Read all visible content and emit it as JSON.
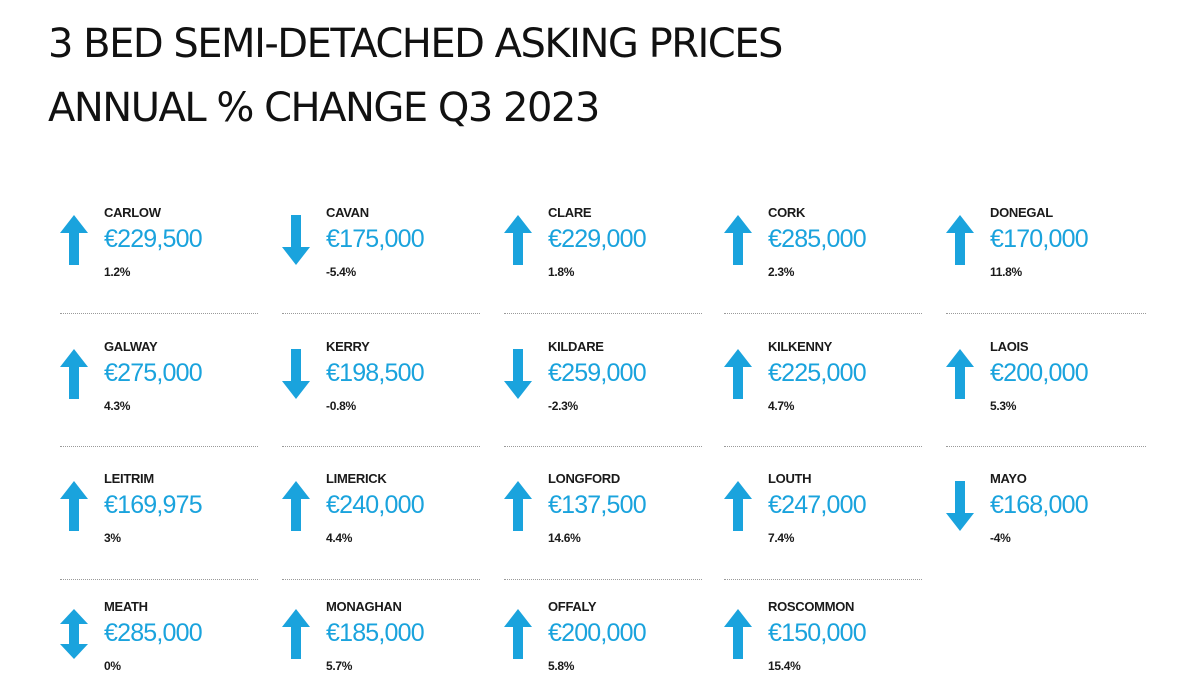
{
  "header": {
    "line1": "3 BED SEMI-DETACHED ASKING PRICES",
    "line2": "ANNUAL % CHANGE Q3 2023"
  },
  "colors": {
    "accent": "#1aa3dd",
    "text": "#1a1a1a"
  },
  "chart_data": {
    "type": "table",
    "title": "3 BED SEMI-DETACHED ASKING PRICES ANNUAL % CHANGE Q3 2023",
    "columns": [
      "county",
      "price",
      "change"
    ],
    "rows": [
      {
        "county": "CARLOW",
        "price": "€229,500",
        "change": "1.2%",
        "price_value": 229500,
        "change_value": 1.2,
        "direction": "up"
      },
      {
        "county": "CAVAN",
        "price": "€175,000",
        "change": "-5.4%",
        "price_value": 175000,
        "change_value": -5.4,
        "direction": "down"
      },
      {
        "county": "CLARE",
        "price": "€229,000",
        "change": "1.8%",
        "price_value": 229000,
        "change_value": 1.8,
        "direction": "up"
      },
      {
        "county": "CORK",
        "price": "€285,000",
        "change": "2.3%",
        "price_value": 285000,
        "change_value": 2.3,
        "direction": "up"
      },
      {
        "county": "DONEGAL",
        "price": "€170,000",
        "change": "11.8%",
        "price_value": 170000,
        "change_value": 11.8,
        "direction": "up"
      },
      {
        "county": "GALWAY",
        "price": "€275,000",
        "change": "4.3%",
        "price_value": 275000,
        "change_value": 4.3,
        "direction": "up"
      },
      {
        "county": "KERRY",
        "price": "€198,500",
        "change": "-0.8%",
        "price_value": 198500,
        "change_value": -0.8,
        "direction": "down"
      },
      {
        "county": "KILDARE",
        "price": "€259,000",
        "change": "-2.3%",
        "price_value": 259000,
        "change_value": -2.3,
        "direction": "down"
      },
      {
        "county": "KILKENNY",
        "price": "€225,000",
        "change": "4.7%",
        "price_value": 225000,
        "change_value": 4.7,
        "direction": "up"
      },
      {
        "county": "LAOIS",
        "price": "€200,000",
        "change": "5.3%",
        "price_value": 200000,
        "change_value": 5.3,
        "direction": "up"
      },
      {
        "county": "LEITRIM",
        "price": "€169,975",
        "change": "3%",
        "price_value": 169975,
        "change_value": 3,
        "direction": "up"
      },
      {
        "county": "LIMERICK",
        "price": "€240,000",
        "change": "4.4%",
        "price_value": 240000,
        "change_value": 4.4,
        "direction": "up"
      },
      {
        "county": "LONGFORD",
        "price": "€137,500",
        "change": "14.6%",
        "price_value": 137500,
        "change_value": 14.6,
        "direction": "up"
      },
      {
        "county": "LOUTH",
        "price": "€247,000",
        "change": "7.4%",
        "price_value": 247000,
        "change_value": 7.4,
        "direction": "up"
      },
      {
        "county": "MAYO",
        "price": "€168,000",
        "change": "-4%",
        "price_value": 168000,
        "change_value": -4,
        "direction": "down"
      },
      {
        "county": "MEATH",
        "price": "€285,000",
        "change": "0%",
        "price_value": 285000,
        "change_value": 0,
        "direction": "both"
      },
      {
        "county": "MONAGHAN",
        "price": "€185,000",
        "change": "5.7%",
        "price_value": 185000,
        "change_value": 5.7,
        "direction": "up"
      },
      {
        "county": "OFFALY",
        "price": "€200,000",
        "change": "5.8%",
        "price_value": 200000,
        "change_value": 5.8,
        "direction": "up"
      },
      {
        "county": "ROSCOMMON",
        "price": "€150,000",
        "change": "15.4%",
        "price_value": 150000,
        "change_value": 15.4,
        "direction": "up"
      }
    ]
  }
}
